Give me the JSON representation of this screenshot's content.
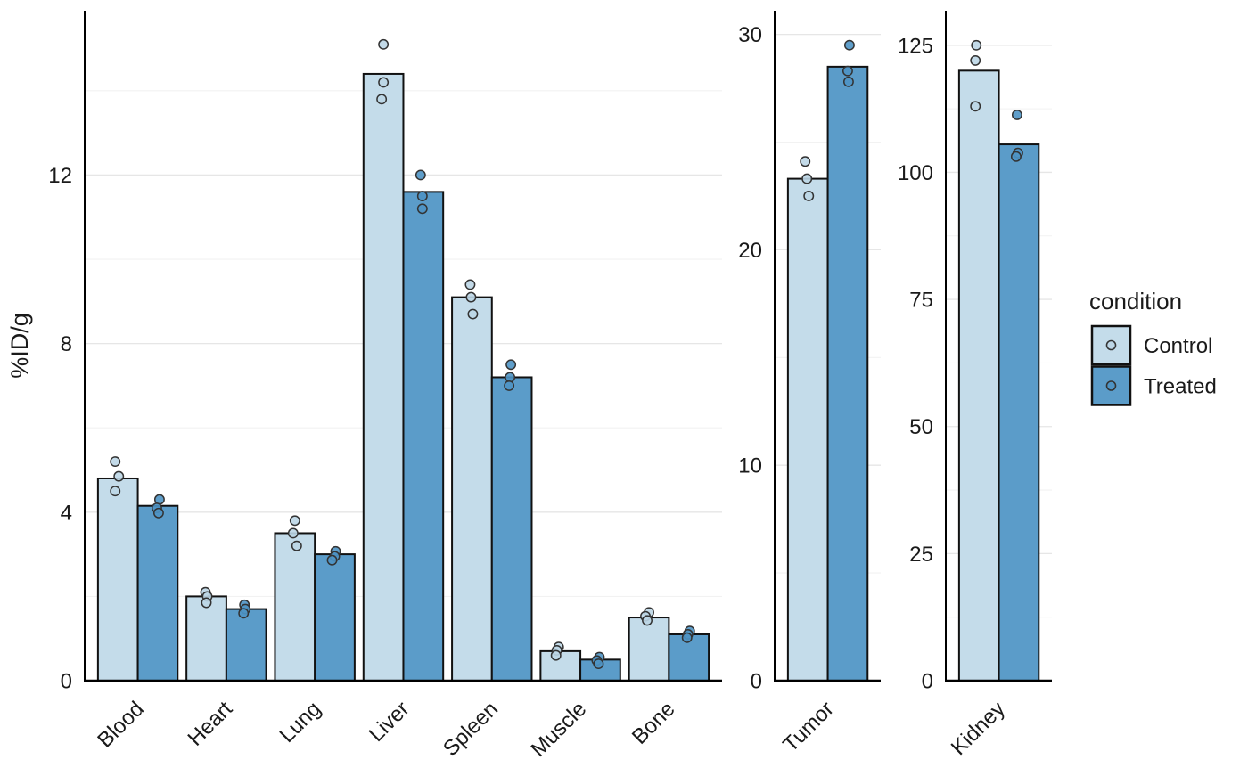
{
  "chart_data": {
    "type": "bar",
    "title": "",
    "ylabel": "%ID/g",
    "legend": {
      "title": "condition",
      "position": "right",
      "entries": [
        {
          "label": "Control"
        },
        {
          "label": "Treated"
        }
      ]
    },
    "colors": {
      "control_fill": "#C4DCEA",
      "treated_fill": "#5B9CC9",
      "control_point_fill": "#BDD6E6",
      "treated_point_fill": "#4E93C4",
      "bar_stroke": "#111111",
      "point_stroke": "#333333",
      "grid_major": "#E6E6E6",
      "grid_minor": "#F2F2F2",
      "axis": "#000000",
      "text": "#1A1A1A"
    },
    "panels": [
      {
        "name": "organs",
        "categories": [
          "Blood",
          "Heart",
          "Lung",
          "Liver",
          "Spleen",
          "Muscle",
          "Bone"
        ],
        "ylim": [
          0,
          15.9
        ],
        "yticks": [
          0,
          4,
          8,
          12
        ],
        "minor_gridlines": [
          2,
          6,
          10,
          14
        ],
        "grid": true,
        "series": [
          {
            "name": "Control",
            "bar_means": [
              4.8,
              2.0,
              3.5,
              14.4,
              9.1,
              0.7,
              1.5
            ],
            "points": [
              [
                [
                  5.2,
                  -3
                ],
                [
                  4.85,
                  1
                ],
                [
                  4.5,
                  -3
                ]
              ],
              [
                [
                  2.1,
                  -1
                ],
                [
                  2.0,
                  1
                ],
                [
                  1.85,
                  0
                ]
              ],
              [
                [
                  3.8,
                  0
                ],
                [
                  3.5,
                  -2
                ],
                [
                  3.2,
                  2
                ]
              ],
              [
                [
                  15.1,
                  0
                ],
                [
                  14.2,
                  0
                ],
                [
                  13.8,
                  -2
                ]
              ],
              [
                [
                  9.4,
                  -2
                ],
                [
                  9.1,
                  -1
                ],
                [
                  8.7,
                  1
                ]
              ],
              [
                [
                  0.8,
                  -2
                ],
                [
                  0.72,
                  -4
                ],
                [
                  0.6,
                  -5
                ]
              ],
              [
                [
                  1.62,
                  0
                ],
                [
                  1.53,
                  -4
                ],
                [
                  1.43,
                  -2
                ]
              ]
            ]
          },
          {
            "name": "Treated",
            "bar_means": [
              4.15,
              1.7,
              3.0,
              11.6,
              7.2,
              0.5,
              1.1
            ],
            "points": [
              [
                [
                  4.3,
                  2
                ],
                [
                  4.1,
                  -1
                ],
                [
                  3.98,
                  1
                ]
              ],
              [
                [
                  1.8,
                  -2
                ],
                [
                  1.7,
                  -1
                ],
                [
                  1.6,
                  -3
                ]
              ],
              [
                [
                  3.07,
                  1
                ],
                [
                  2.95,
                  0
                ],
                [
                  2.86,
                  -3
                ]
              ],
              [
                [
                  12.0,
                  -3
                ],
                [
                  11.5,
                  -1
                ],
                [
                  11.2,
                  -1
                ]
              ],
              [
                [
                  7.5,
                  -1
                ],
                [
                  7.2,
                  -2
                ],
                [
                  7.0,
                  -3
                ]
              ],
              [
                [
                  0.56,
                  -1
                ],
                [
                  0.48,
                  -4
                ],
                [
                  0.4,
                  -2
                ]
              ],
              [
                [
                  1.18,
                  1
                ],
                [
                  1.1,
                  -1
                ],
                [
                  1.02,
                  -2
                ]
              ]
            ]
          }
        ]
      },
      {
        "name": "tumor",
        "categories": [
          "Tumor"
        ],
        "ylim": [
          0,
          31.1
        ],
        "yticks": [
          0,
          10,
          20,
          30
        ],
        "minor_gridlines": [
          5,
          15,
          25
        ],
        "grid": true,
        "series": [
          {
            "name": "Control",
            "bar_means": [
              23.3
            ],
            "points": [
              [
                [
                  24.1,
                  -3
                ],
                [
                  23.3,
                  -1
                ],
                [
                  22.5,
                  1
                ]
              ]
            ]
          },
          {
            "name": "Treated",
            "bar_means": [
              28.5
            ],
            "points": [
              [
                [
                  29.5,
                  2
                ],
                [
                  28.3,
                  0
                ],
                [
                  27.8,
                  1
                ]
              ]
            ]
          }
        ]
      },
      {
        "name": "kidney",
        "categories": [
          "Kidney"
        ],
        "ylim": [
          0,
          131.8
        ],
        "yticks": [
          0,
          25,
          50,
          75,
          100,
          125
        ],
        "minor_gridlines": [
          12.5,
          37.5,
          62.5,
          87.5,
          112.5
        ],
        "grid": true,
        "series": [
          {
            "name": "Control",
            "bar_means": [
              120.0
            ],
            "points": [
              [
                [
                  125.0,
                  -3
                ],
                [
                  122.0,
                  -4
                ],
                [
                  113.0,
                  -4
                ]
              ]
            ]
          },
          {
            "name": "Treated",
            "bar_means": [
              105.5
            ],
            "points": [
              [
                [
                  111.3,
                  -2
                ],
                [
                  103.8,
                  -1
                ],
                [
                  103.1,
                  -3
                ]
              ]
            ]
          }
        ]
      }
    ]
  }
}
